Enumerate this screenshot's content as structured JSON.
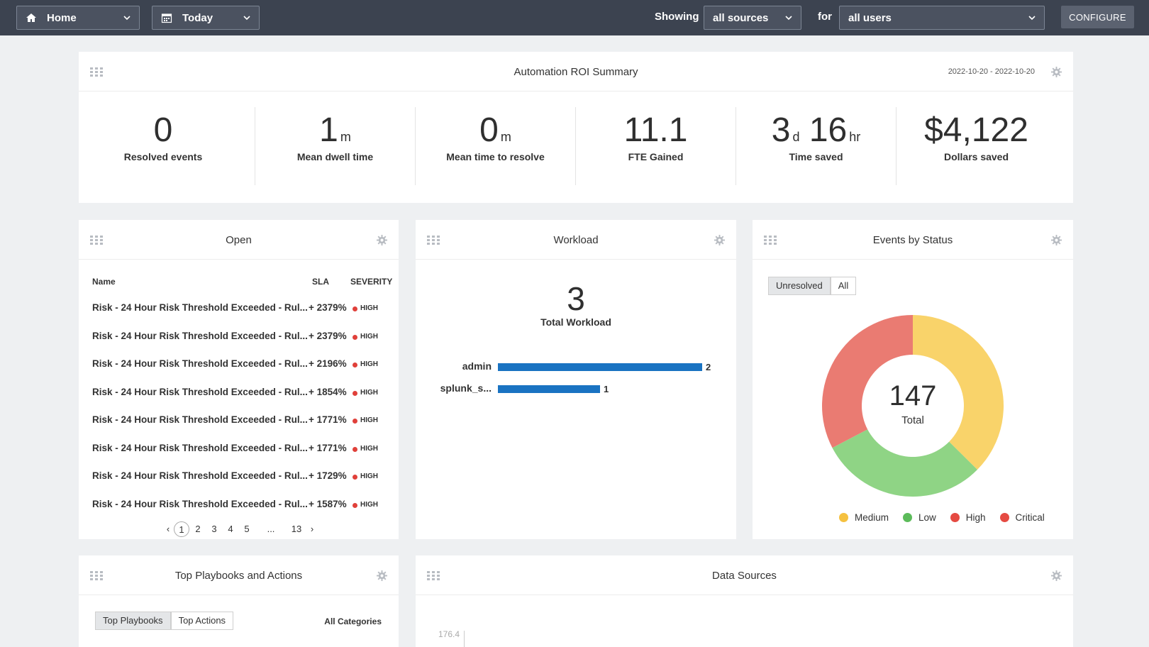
{
  "topbar": {
    "home_label": "Home",
    "date_label": "Today",
    "showing_label": "Showing",
    "sources_value": "all sources",
    "for_label": "for",
    "users_value": "all users",
    "configure_label": "CONFIGURE"
  },
  "roi": {
    "title": "Automation ROI Summary",
    "date_range": "2022-10-20 - 2022-10-20",
    "metrics": [
      {
        "value": "0",
        "label": "Resolved events"
      },
      {
        "value": "1",
        "unit": "m",
        "label": "Mean dwell time"
      },
      {
        "value": "0",
        "unit": "m",
        "label": "Mean time to resolve"
      },
      {
        "value": "11.1",
        "label": "FTE Gained"
      },
      {
        "value1": "3",
        "unit1": "d",
        "value2": "16",
        "unit2": "hr",
        "label": "Time saved"
      },
      {
        "value": "$4,122",
        "label": "Dollars saved"
      }
    ]
  },
  "open": {
    "title": "Open",
    "columns": {
      "name": "Name",
      "sla": "SLA",
      "severity": "SEVERITY"
    },
    "rows": [
      {
        "name": "Risk - 24 Hour Risk Threshold Exceeded - Rul...",
        "sla": "+ 2379%",
        "severity": "HIGH"
      },
      {
        "name": "Risk - 24 Hour Risk Threshold Exceeded - Rul...",
        "sla": "+ 2379%",
        "severity": "HIGH"
      },
      {
        "name": "Risk - 24 Hour Risk Threshold Exceeded - Rul...",
        "sla": "+ 2196%",
        "severity": "HIGH"
      },
      {
        "name": "Risk - 24 Hour Risk Threshold Exceeded - Rul...",
        "sla": "+ 1854%",
        "severity": "HIGH"
      },
      {
        "name": "Risk - 24 Hour Risk Threshold Exceeded - Rul...",
        "sla": "+ 1771%",
        "severity": "HIGH"
      },
      {
        "name": "Risk - 24 Hour Risk Threshold Exceeded - Rul...",
        "sla": "+ 1771%",
        "severity": "HIGH"
      },
      {
        "name": "Risk - 24 Hour Risk Threshold Exceeded - Rul...",
        "sla": "+ 1729%",
        "severity": "HIGH"
      },
      {
        "name": "Risk - 24 Hour Risk Threshold Exceeded - Rul...",
        "sla": "+ 1587%",
        "severity": "HIGH"
      }
    ],
    "pagination": {
      "prev": "‹",
      "pages": [
        "1",
        "2",
        "3",
        "4",
        "5",
        "...",
        "13"
      ],
      "next": "›",
      "current": "1"
    }
  },
  "workload": {
    "title": "Workload",
    "total": "3",
    "total_label": "Total Workload",
    "max": 2,
    "bars": [
      {
        "label": "admin",
        "value": 2,
        "value_text": "2"
      },
      {
        "label": "splunk_s...",
        "value": 1,
        "value_text": "1"
      }
    ]
  },
  "events": {
    "title": "Events by Status",
    "toggle": [
      "Unresolved",
      "All"
    ],
    "active_toggle": "Unresolved",
    "total": "147",
    "total_label": "Total",
    "legend": [
      {
        "label": "Medium",
        "color": "#f5c140"
      },
      {
        "label": "Low",
        "color": "#5cbb5a"
      },
      {
        "label": "High",
        "color": "#e54a42"
      },
      {
        "label": "Critical",
        "color": "#e54a42"
      }
    ]
  },
  "chart_data": {
    "type": "pie",
    "slices": [
      {
        "name": "Medium",
        "value": 55,
        "color": "#f9d36a"
      },
      {
        "name": "Low",
        "value": 44,
        "color": "#8fd485"
      },
      {
        "name": "High",
        "value": 48,
        "color": "#ea7b72"
      }
    ],
    "donut": true
  },
  "playbooks": {
    "title": "Top Playbooks and Actions",
    "tabs": [
      "Top Playbooks",
      "Top Actions"
    ],
    "active_tab": "Top Playbooks",
    "category": "All Categories"
  },
  "datasources": {
    "title": "Data Sources",
    "tick": "176.4"
  }
}
